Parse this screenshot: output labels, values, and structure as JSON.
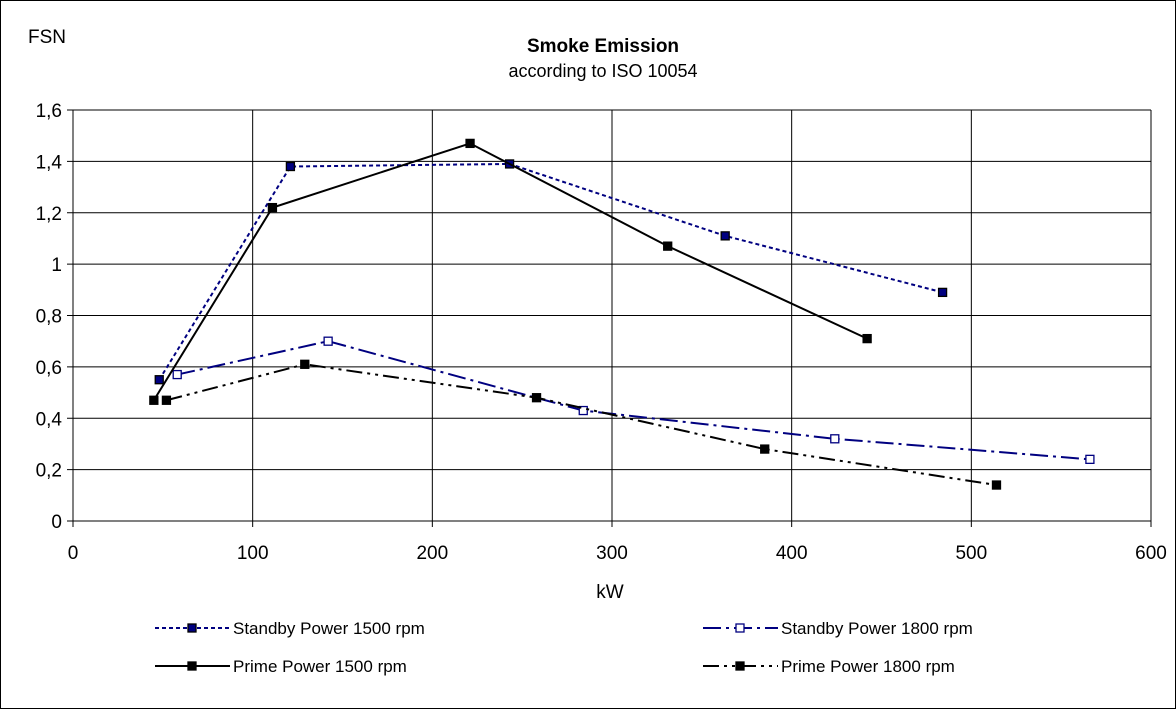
{
  "chart_data": {
    "type": "line",
    "title": "Smoke Emission",
    "subtitle": "according to ISO 10054",
    "xlabel": "kW",
    "ylabel": "FSN",
    "xlim": [
      0,
      600
    ],
    "ylim": [
      0,
      1.6
    ],
    "x_ticks": [
      "0",
      "100",
      "200",
      "300",
      "400",
      "500",
      "600"
    ],
    "y_ticks": [
      "0",
      "0,2",
      "0,4",
      "0,6",
      "0,8",
      "1",
      "1,2",
      "1,4",
      "1,6"
    ],
    "grid": true,
    "legend_position": "bottom",
    "series": [
      {
        "name": "Standby Power  1500 rpm",
        "color": "#000080",
        "line_style": "dotted",
        "marker": "filled-square",
        "x": [
          48,
          121,
          243,
          363,
          484
        ],
        "y": [
          0.55,
          1.38,
          1.39,
          1.11,
          0.89
        ]
      },
      {
        "name": "Standby Power  1800 rpm",
        "color": "#000080",
        "line_style": "dash-dot",
        "marker": "open-square",
        "x": [
          58,
          142,
          284,
          424,
          566
        ],
        "y": [
          0.57,
          0.7,
          0.43,
          0.32,
          0.24
        ]
      },
      {
        "name": "Prime Power  1500 rpm",
        "color": "#000000",
        "line_style": "solid",
        "marker": "filled-square",
        "x": [
          45,
          111,
          221,
          331,
          442
        ],
        "y": [
          0.47,
          1.22,
          1.47,
          1.07,
          0.71
        ]
      },
      {
        "name": "Prime Power  1800 rpm",
        "color": "#000000",
        "line_style": "dash-dot-dot",
        "marker": "filled-square",
        "x": [
          52,
          129,
          258,
          385,
          514
        ],
        "y": [
          0.47,
          0.61,
          0.48,
          0.28,
          0.14
        ]
      }
    ]
  }
}
